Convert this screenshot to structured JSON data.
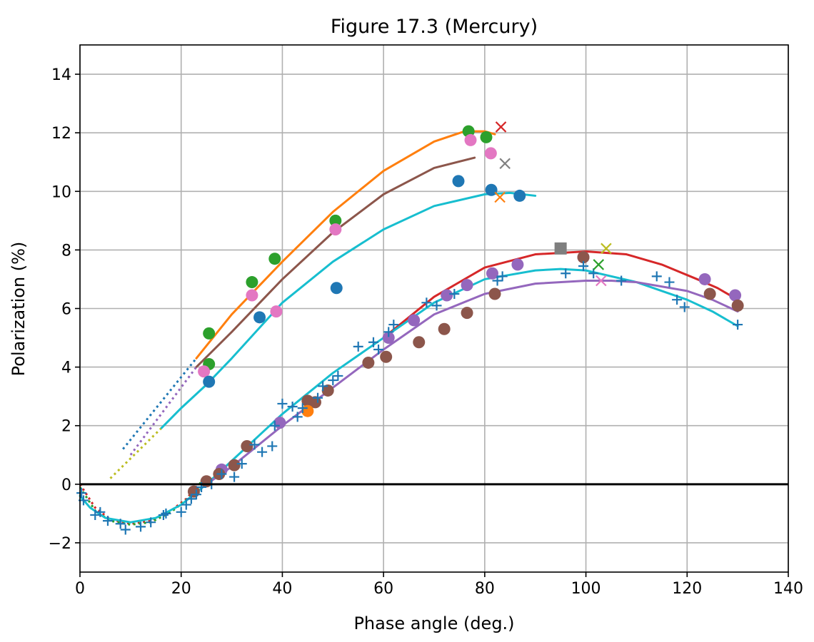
{
  "chart_data": {
    "type": "scatter",
    "title": "Figure 17.3 (Mercury)",
    "xlabel": "Phase angle (deg.)",
    "ylabel": "Polarization (%)",
    "xlim": [
      0,
      140
    ],
    "ylim": [
      -3,
      15
    ],
    "xticks": [
      0,
      20,
      40,
      60,
      80,
      100,
      120,
      140
    ],
    "yticks": [
      -2,
      0,
      2,
      4,
      6,
      8,
      10,
      12,
      14
    ],
    "xtick_labels": [
      "0",
      "20",
      "40",
      "60",
      "80",
      "100",
      "120",
      "140"
    ],
    "ytick_labels": [
      "−2",
      "0",
      "2",
      "4",
      "6",
      "8",
      "10",
      "12",
      "14"
    ],
    "grid": true,
    "legend": "none",
    "colors": {
      "blue": "#1f77b4",
      "orange": "#ff7f0e",
      "green": "#2ca02c",
      "red": "#d62728",
      "purple": "#9467bd",
      "brown": "#8c564b",
      "pink": "#e377c2",
      "gray": "#7f7f7f",
      "olive": "#bcbd22",
      "cyan": "#17becf"
    },
    "reference_lines": [
      {
        "y": 0,
        "color": "#000000"
      }
    ],
    "lines": [
      {
        "color": "orange",
        "style": "solid",
        "points": [
          [
            23,
            4.3
          ],
          [
            30,
            5.8
          ],
          [
            40,
            7.6
          ],
          [
            50,
            9.3
          ],
          [
            60,
            10.7
          ],
          [
            70,
            11.7
          ],
          [
            76,
            12.05
          ],
          [
            80,
            12.05
          ],
          [
            82,
            11.95
          ]
        ]
      },
      {
        "color": "brown",
        "style": "solid",
        "points": [
          [
            23,
            4.0
          ],
          [
            30,
            5.2
          ],
          [
            40,
            7.0
          ],
          [
            50,
            8.6
          ],
          [
            60,
            9.9
          ],
          [
            70,
            10.8
          ],
          [
            78,
            11.15
          ]
        ]
      },
      {
        "color": "cyan",
        "style": "solid",
        "points": [
          [
            16,
            1.9
          ],
          [
            20,
            2.6
          ],
          [
            25,
            3.4
          ],
          [
            30,
            4.3
          ],
          [
            40,
            6.2
          ],
          [
            50,
            7.6
          ],
          [
            60,
            8.7
          ],
          [
            70,
            9.5
          ],
          [
            80,
            9.9
          ],
          [
            85,
            9.95
          ],
          [
            90,
            9.85
          ]
        ]
      },
      {
        "color": "blue",
        "style": "dotted",
        "points": [
          [
            8.5,
            1.2
          ],
          [
            23,
            4.3
          ]
        ]
      },
      {
        "color": "purple",
        "style": "dotted",
        "points": [
          [
            10,
            1.0
          ],
          [
            23,
            4.0
          ]
        ]
      },
      {
        "color": "olive",
        "style": "dotted",
        "points": [
          [
            6,
            0.2
          ],
          [
            16,
            1.9
          ]
        ]
      },
      {
        "color": "red",
        "style": "dotted",
        "points": [
          [
            0,
            0
          ],
          [
            3,
            -0.8
          ],
          [
            6,
            -1.2
          ],
          [
            10,
            -1.35
          ],
          [
            14,
            -1.25
          ],
          [
            18,
            -0.9
          ],
          [
            21,
            -0.5
          ],
          [
            23.5,
            0
          ]
        ]
      },
      {
        "color": "green",
        "style": "dotted",
        "points": [
          [
            0,
            -0.1
          ],
          [
            3,
            -0.9
          ],
          [
            6,
            -1.25
          ],
          [
            10,
            -1.38
          ],
          [
            14,
            -1.3
          ],
          [
            18,
            -0.95
          ],
          [
            22,
            -0.4
          ],
          [
            24,
            0.1
          ]
        ]
      },
      {
        "color": "red",
        "style": "solid",
        "points": [
          [
            60,
            5.0
          ],
          [
            70,
            6.4
          ],
          [
            80,
            7.4
          ],
          [
            90,
            7.85
          ],
          [
            100,
            7.95
          ],
          [
            108,
            7.85
          ],
          [
            115,
            7.5
          ],
          [
            122,
            7.0
          ],
          [
            126,
            6.7
          ],
          [
            130,
            6.3
          ]
        ]
      },
      {
        "color": "cyan",
        "style": "solid",
        "points": [
          [
            0,
            -0.4
          ],
          [
            2,
            -0.8
          ],
          [
            5,
            -1.15
          ],
          [
            10,
            -1.3
          ],
          [
            15,
            -1.15
          ],
          [
            20,
            -0.7
          ],
          [
            25,
            0
          ],
          [
            30,
            0.8
          ],
          [
            40,
            2.4
          ],
          [
            50,
            3.8
          ],
          [
            60,
            5.0
          ],
          [
            70,
            6.2
          ],
          [
            80,
            7.0
          ],
          [
            90,
            7.3
          ],
          [
            95,
            7.35
          ],
          [
            100,
            7.3
          ],
          [
            110,
            6.9
          ],
          [
            120,
            6.3
          ],
          [
            125,
            5.9
          ],
          [
            130,
            5.4
          ]
        ]
      },
      {
        "color": "purple",
        "style": "solid",
        "points": [
          [
            25,
            0
          ],
          [
            30,
            0.6
          ],
          [
            40,
            2.0
          ],
          [
            50,
            3.3
          ],
          [
            60,
            4.6
          ],
          [
            70,
            5.8
          ],
          [
            80,
            6.5
          ],
          [
            90,
            6.85
          ],
          [
            100,
            6.95
          ],
          [
            105,
            6.95
          ],
          [
            110,
            6.9
          ],
          [
            120,
            6.6
          ],
          [
            125,
            6.3
          ],
          [
            130,
            5.9
          ]
        ]
      }
    ],
    "series": [
      {
        "color": "green",
        "marker": "circle",
        "points": [
          [
            25.5,
            5.15
          ],
          [
            25.5,
            4.1
          ],
          [
            34,
            6.9
          ],
          [
            38.5,
            7.7
          ],
          [
            50.5,
            9.0
          ],
          [
            76.8,
            12.05
          ],
          [
            80.3,
            11.85
          ]
        ]
      },
      {
        "color": "pink",
        "marker": "circle",
        "points": [
          [
            24.5,
            3.85
          ],
          [
            34,
            6.45
          ],
          [
            38.8,
            5.9
          ],
          [
            50.5,
            8.7
          ],
          [
            77.2,
            11.75
          ],
          [
            81.2,
            11.3
          ]
        ]
      },
      {
        "color": "blue",
        "marker": "circle",
        "points": [
          [
            25.5,
            3.5
          ],
          [
            35.5,
            5.7
          ],
          [
            50.7,
            6.7
          ],
          [
            74.8,
            10.35
          ],
          [
            81.3,
            10.05
          ],
          [
            86.9,
            9.85
          ]
        ]
      },
      {
        "color": "purple",
        "marker": "circle",
        "points": [
          [
            28,
            0.5
          ],
          [
            39.5,
            2.1
          ],
          [
            61,
            5.0
          ],
          [
            66,
            5.6
          ],
          [
            72.5,
            6.45
          ],
          [
            76.5,
            6.8
          ],
          [
            81.5,
            7.2
          ],
          [
            86.5,
            7.5
          ],
          [
            99.5,
            7.75
          ],
          [
            123.5,
            7.0
          ],
          [
            129.5,
            6.45
          ]
        ]
      },
      {
        "color": "brown",
        "marker": "circle",
        "points": [
          [
            22.5,
            -0.25
          ],
          [
            25,
            0.1
          ],
          [
            27.5,
            0.35
          ],
          [
            30.5,
            0.65
          ],
          [
            33,
            1.3
          ],
          [
            45,
            2.85
          ],
          [
            46.5,
            2.8
          ],
          [
            49,
            3.2
          ],
          [
            57,
            4.15
          ],
          [
            60.5,
            4.35
          ],
          [
            67,
            4.85
          ],
          [
            72,
            5.3
          ],
          [
            76.5,
            5.85
          ],
          [
            82,
            6.5
          ],
          [
            99.5,
            7.75
          ],
          [
            124.5,
            6.5
          ],
          [
            130,
            6.1
          ]
        ]
      },
      {
        "color": "orange",
        "marker": "circle",
        "points": [
          [
            45,
            2.5
          ]
        ]
      },
      {
        "color": "blue",
        "marker": "plus",
        "points": [
          [
            0.3,
            -0.3
          ],
          [
            0.7,
            -0.55
          ],
          [
            3,
            -1.05
          ],
          [
            4,
            -0.95
          ],
          [
            5.5,
            -1.25
          ],
          [
            8,
            -1.35
          ],
          [
            9,
            -1.55
          ],
          [
            12,
            -1.45
          ],
          [
            14,
            -1.3
          ],
          [
            16.5,
            -1.05
          ],
          [
            17,
            -1.0
          ],
          [
            20,
            -0.95
          ],
          [
            21,
            -0.7
          ],
          [
            22,
            -0.5
          ],
          [
            23,
            -0.35
          ],
          [
            24,
            -0.1
          ],
          [
            26,
            0.0
          ],
          [
            28,
            0.35
          ],
          [
            30.5,
            0.25
          ],
          [
            32,
            0.7
          ],
          [
            34.5,
            1.35
          ],
          [
            36,
            1.1
          ],
          [
            38,
            1.3
          ],
          [
            38.5,
            2.0
          ],
          [
            40,
            2.75
          ],
          [
            42,
            2.65
          ],
          [
            43,
            2.3
          ],
          [
            44,
            2.6
          ],
          [
            47,
            2.95
          ],
          [
            48,
            3.35
          ],
          [
            50,
            3.55
          ],
          [
            51,
            3.7
          ],
          [
            55,
            4.7
          ],
          [
            58,
            4.85
          ],
          [
            59,
            4.6
          ],
          [
            61,
            5.2
          ],
          [
            62,
            5.45
          ],
          [
            68.5,
            6.2
          ],
          [
            70.5,
            6.1
          ],
          [
            74,
            6.5
          ],
          [
            82.5,
            6.95
          ],
          [
            83.5,
            7.1
          ],
          [
            96,
            7.2
          ],
          [
            99.5,
            7.45
          ],
          [
            101.5,
            7.2
          ],
          [
            107,
            6.95
          ],
          [
            114,
            7.1
          ],
          [
            116.5,
            6.9
          ],
          [
            118,
            6.3
          ],
          [
            119.5,
            6.05
          ],
          [
            130,
            5.45
          ]
        ]
      },
      {
        "color": "red",
        "marker": "x",
        "points": [
          [
            83.2,
            12.2
          ]
        ]
      },
      {
        "color": "gray",
        "marker": "x",
        "points": [
          [
            84,
            10.95
          ]
        ]
      },
      {
        "color": "orange",
        "marker": "x",
        "points": [
          [
            83,
            9.8
          ]
        ]
      },
      {
        "color": "olive",
        "marker": "x",
        "points": [
          [
            104,
            8.05
          ]
        ]
      },
      {
        "color": "green",
        "marker": "x",
        "points": [
          [
            102.5,
            7.5
          ]
        ]
      },
      {
        "color": "pink",
        "marker": "x",
        "points": [
          [
            103,
            6.95
          ]
        ]
      },
      {
        "color": "gray",
        "marker": "square",
        "points": [
          [
            95,
            8.05
          ]
        ]
      }
    ]
  }
}
